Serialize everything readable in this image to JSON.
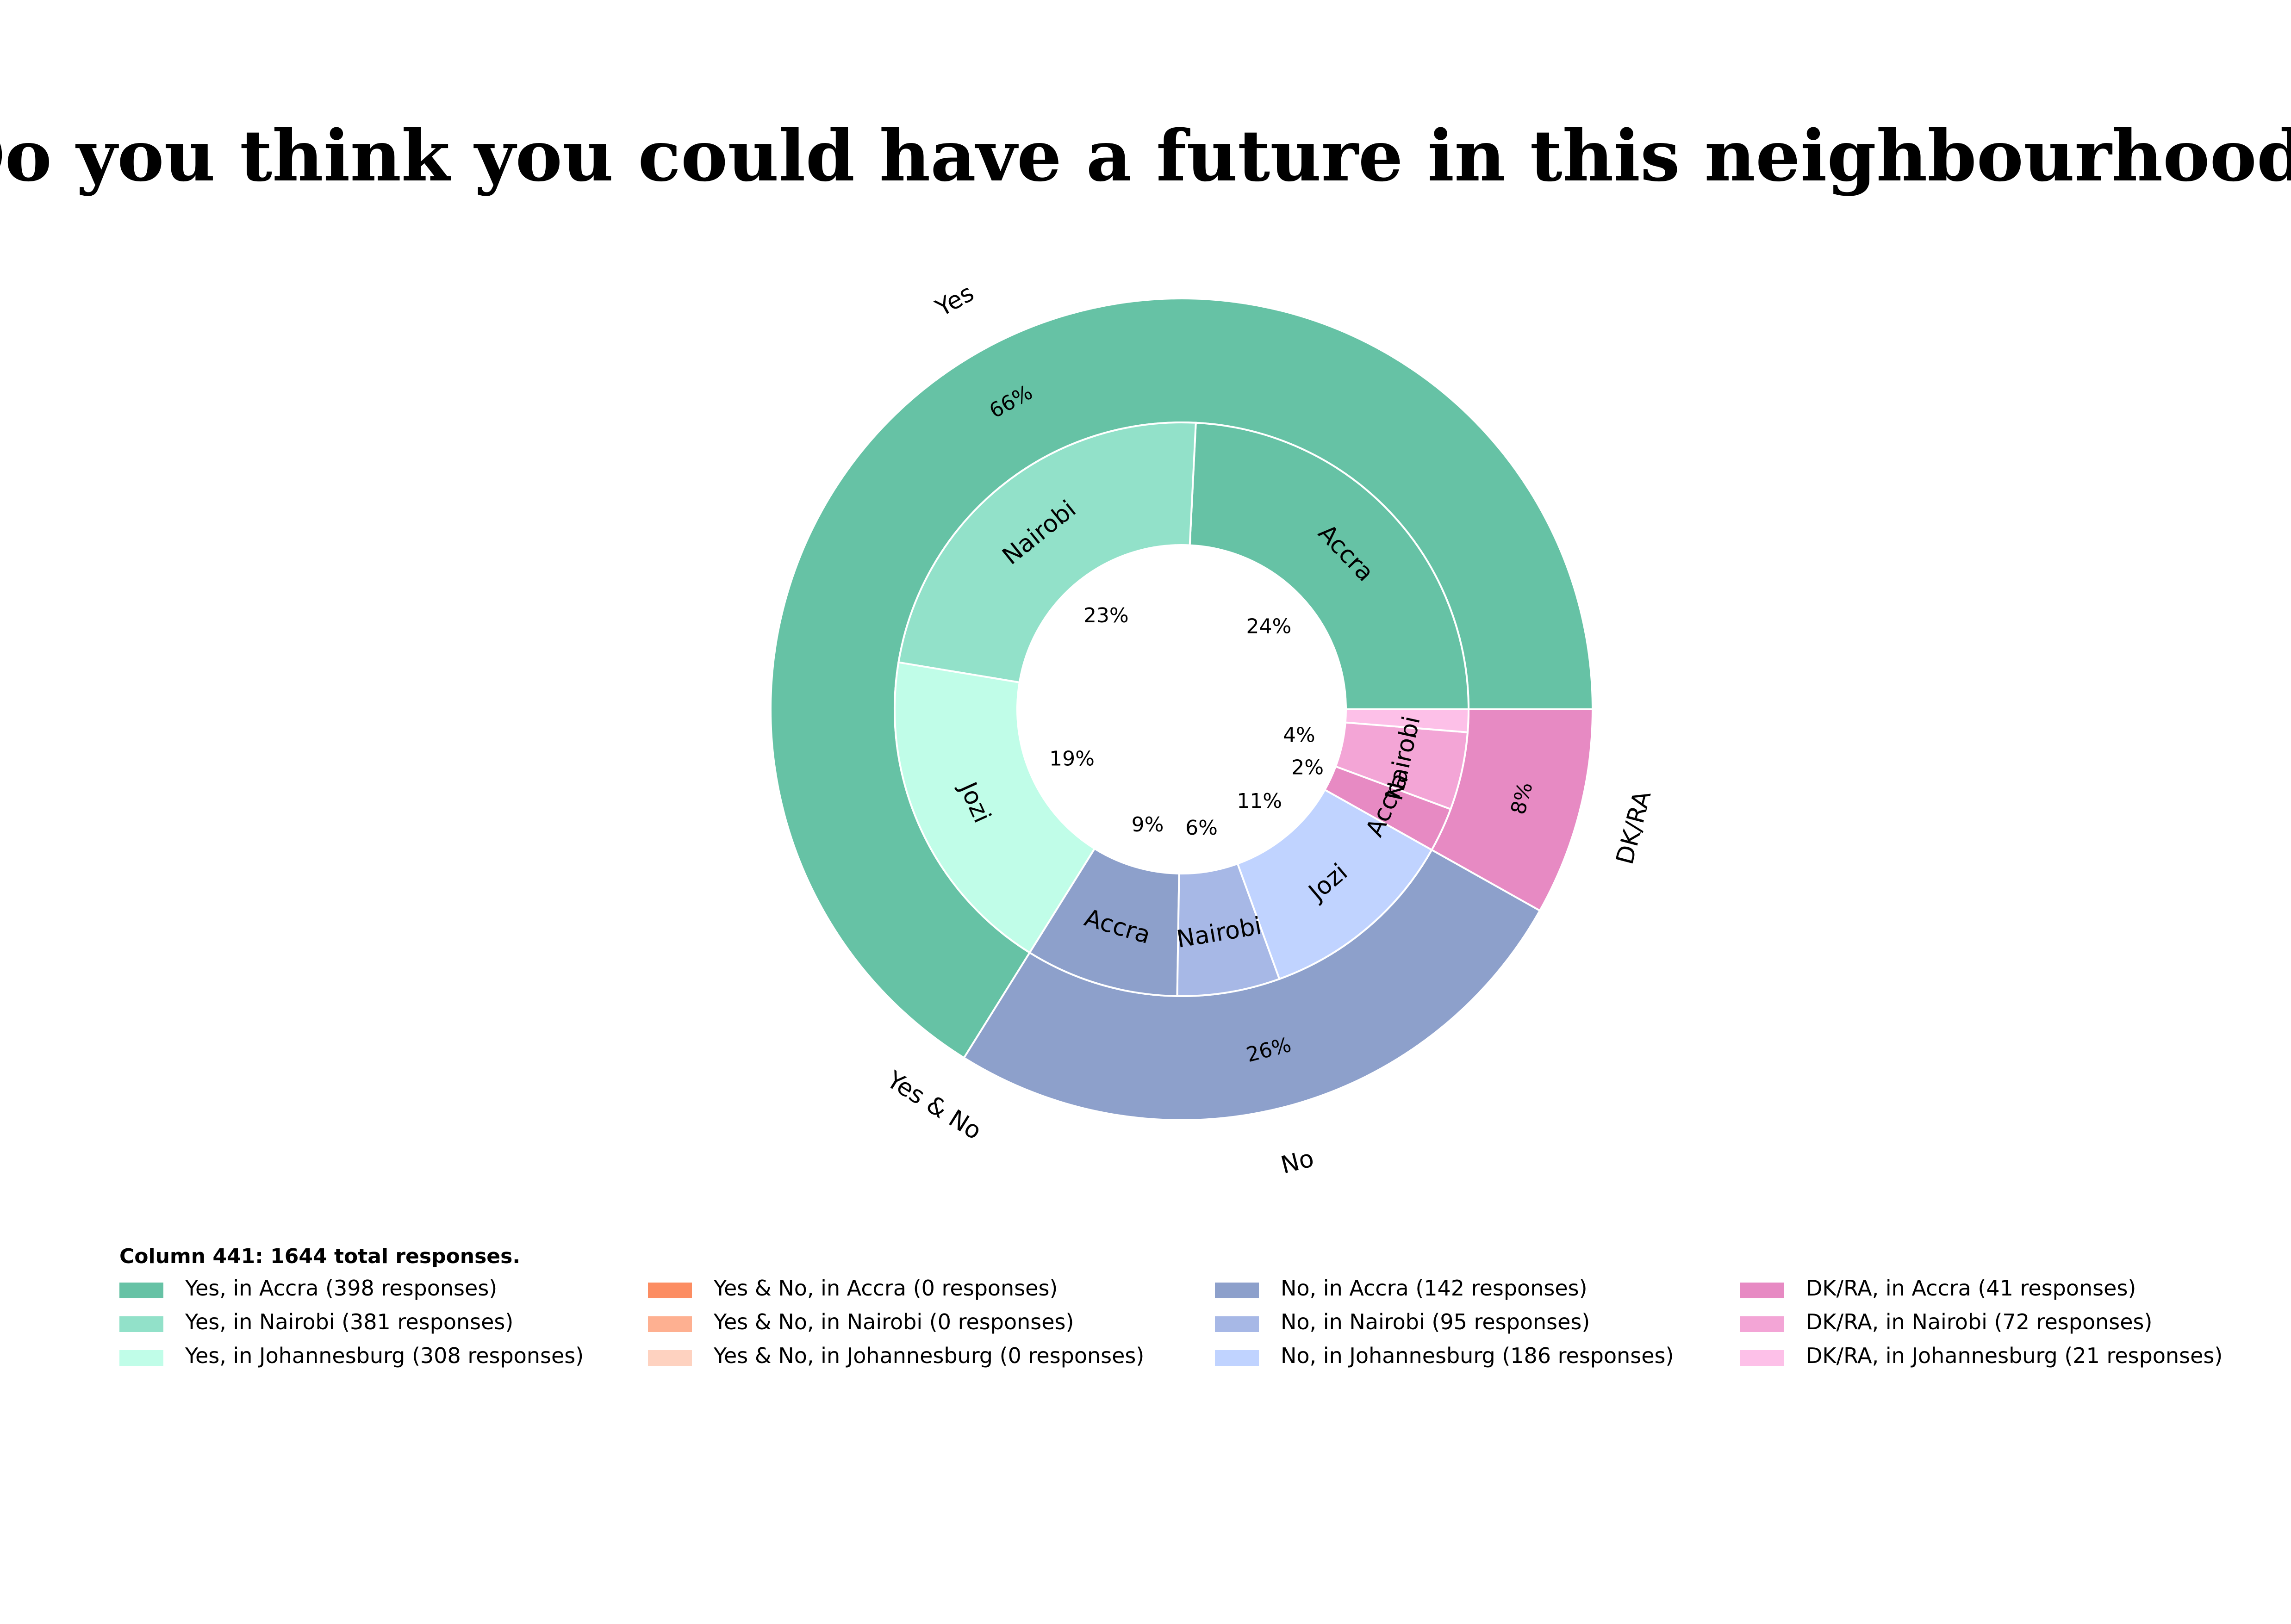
{
  "chart_data": {
    "type": "pie",
    "title": "\"Do you think you could have a future in this neighbourhood?\"",
    "outer_ring": [
      {
        "name": "Yes",
        "value": 1087,
        "percent_label": "66%",
        "color": "#66c2a5"
      },
      {
        "name": "Yes & No",
        "value": 0,
        "percent_label": "",
        "color": "#fc8d62"
      },
      {
        "name": "No",
        "value": 423,
        "percent_label": "26%",
        "color": "#8da0cb"
      },
      {
        "name": "DK/RA",
        "value": 134,
        "percent_label": "8%",
        "color": "#e78ac3"
      }
    ],
    "inner_ring": [
      {
        "group": "Yes",
        "label": "Accra",
        "value": 398,
        "percent_label": "24%",
        "color": "#66c2a5"
      },
      {
        "group": "Yes",
        "label": "Nairobi",
        "value": 381,
        "percent_label": "23%",
        "color": "#92e1c9"
      },
      {
        "group": "Yes",
        "label": "Jozi",
        "value": 308,
        "percent_label": "19%",
        "color": "#c0fde8"
      },
      {
        "group": "Yes & No",
        "label": "",
        "value": 0,
        "percent_label": "",
        "color": "#fc8d62"
      },
      {
        "group": "Yes & No",
        "label": "",
        "value": 0,
        "percent_label": "",
        "color": "#feb091"
      },
      {
        "group": "Yes & No",
        "label": "",
        "value": 0,
        "percent_label": "",
        "color": "#fed2c0"
      },
      {
        "group": "No",
        "label": "Accra",
        "value": 142,
        "percent_label": "9%",
        "color": "#8da0cb"
      },
      {
        "group": "No",
        "label": "Nairobi",
        "value": 95,
        "percent_label": "6%",
        "color": "#a7b8e6"
      },
      {
        "group": "No",
        "label": "Jozi",
        "value": 186,
        "percent_label": "11%",
        "color": "#c0d3ff"
      },
      {
        "group": "DK/RA",
        "label": "Accra",
        "value": 41,
        "percent_label": "2%",
        "color": "#e78ac3"
      },
      {
        "group": "DK/RA",
        "label": "Nairobi",
        "value": 72,
        "percent_label": "4%",
        "color": "#f3a5d6"
      },
      {
        "group": "DK/RA",
        "label": "",
        "value": 21,
        "percent_label": "",
        "color": "#fdc0e8"
      }
    ],
    "legend": {
      "heading": "Column 441: 1644 total responses.",
      "columns": [
        [
          {
            "text": "Yes, in Accra (398 responses)",
            "color": "#66c2a5"
          },
          {
            "text": "Yes, in Nairobi (381 responses)",
            "color": "#92e1c9"
          },
          {
            "text": "Yes, in Johannesburg (308 responses)",
            "color": "#c0fde8"
          }
        ],
        [
          {
            "text": "Yes & No, in Accra (0 responses)",
            "color": "#fc8d62"
          },
          {
            "text": "Yes & No, in Nairobi (0 responses)",
            "color": "#feb091"
          },
          {
            "text": "Yes & No, in Johannesburg (0 responses)",
            "color": "#fed2c0"
          }
        ],
        [
          {
            "text": "No, in Accra (142 responses)",
            "color": "#8da0cb"
          },
          {
            "text": "No, in Nairobi (95 responses)",
            "color": "#a7b8e6"
          },
          {
            "text": "No, in Johannesburg (186 responses)",
            "color": "#c0d3ff"
          }
        ],
        [
          {
            "text": "DK/RA, in Accra (41 responses)",
            "color": "#e78ac3"
          },
          {
            "text": "DK/RA, in Nairobi (72 responses)",
            "color": "#f3a5d6"
          },
          {
            "text": "DK/RA, in Johannesburg (21 responses)",
            "color": "#fdc0e8"
          }
        ]
      ]
    }
  }
}
